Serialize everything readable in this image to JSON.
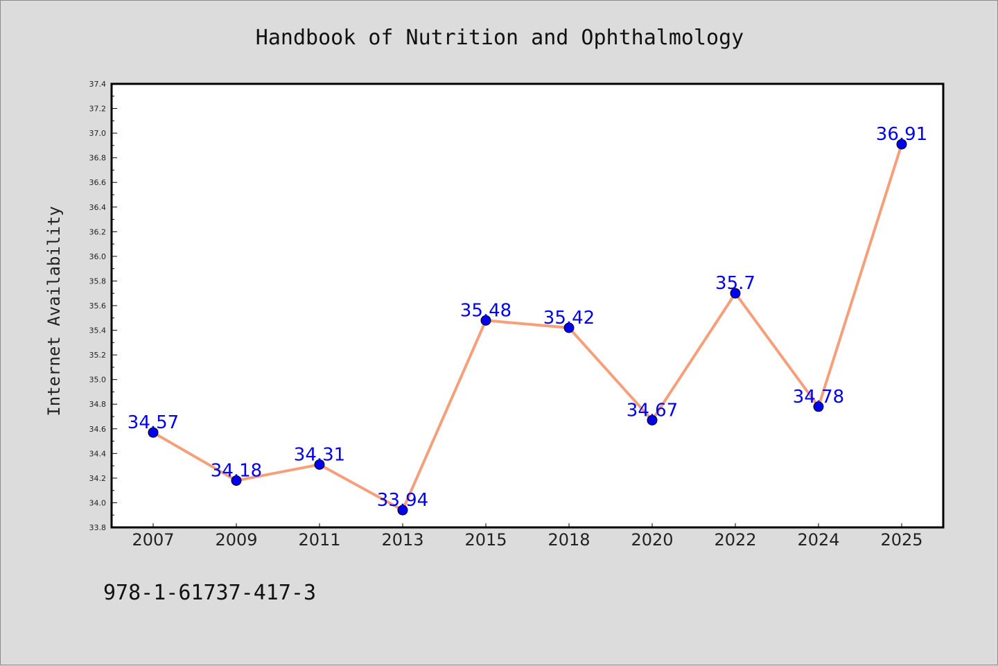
{
  "chart_data": {
    "type": "line",
    "title": "Handbook of Nutrition and Ophthalmology",
    "xlabel": "",
    "ylabel": "Internet Availability",
    "categories": [
      "2007",
      "2009",
      "2011",
      "2013",
      "2015",
      "2018",
      "2020",
      "2022",
      "2024",
      "2025"
    ],
    "series": [
      {
        "values": [
          34.57,
          34.18,
          34.31,
          33.94,
          35.48,
          35.42,
          34.67,
          35.7,
          34.78,
          36.91
        ]
      }
    ],
    "data_labels": [
      "34.57",
      "34.18",
      "34.31",
      "33.94",
      "35.48",
      "35.42",
      "34.67",
      "35.7",
      "34.78",
      "36.91"
    ],
    "ylim": [
      33.8,
      37.4
    ],
    "yticks": [
      "33.8",
      "34.0",
      "34.2",
      "34.4",
      "34.6",
      "34.8",
      "35.0",
      "35.2",
      "35.4",
      "35.6",
      "35.8",
      "36.0",
      "36.2",
      "36.4",
      "36.6",
      "36.8",
      "37.0",
      "37.2",
      "37.4"
    ],
    "grid": false,
    "legend": "none",
    "colors": {
      "line": "#f5a07a",
      "marker": "#0000ee",
      "label": "#0000ee",
      "plot_bg": "#ffffff",
      "page_bg": "#dcdcdc"
    }
  },
  "footer": {
    "isbn": "978-1-61737-417-3"
  }
}
